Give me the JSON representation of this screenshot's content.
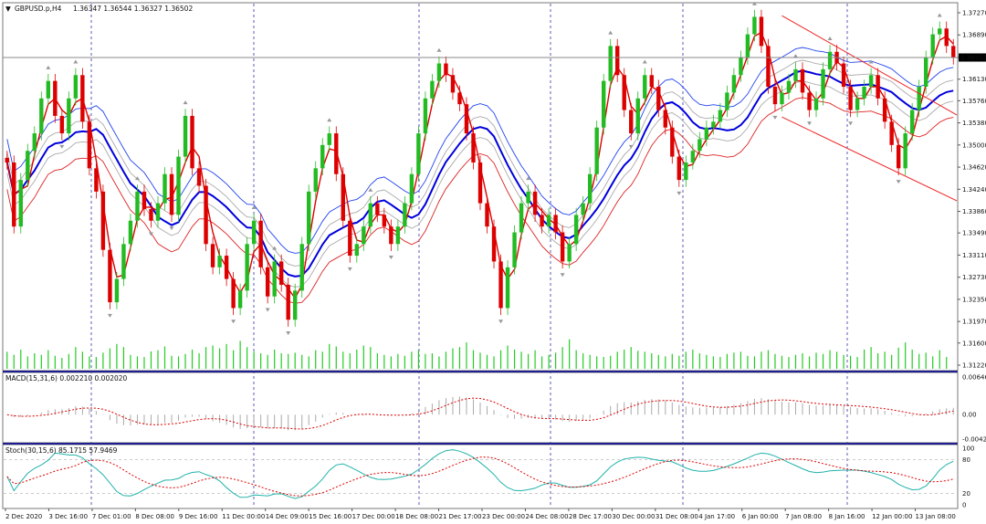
{
  "header": {
    "symbol_label": "GBPUSD.p,H4",
    "ohlc_label": "1.36347 1.36544 1.36327 1.36502"
  },
  "price_panel": {
    "ticks": [
      "1.37270",
      "1.36890",
      "1.36502",
      "1.36130",
      "1.35760",
      "1.35380",
      "1.35000",
      "1.34620",
      "1.34240",
      "1.33860",
      "1.33490",
      "1.33110",
      "1.32730",
      "1.32350",
      "1.31970",
      "1.31600",
      "1.31220"
    ],
    "ylim": [
      1.3122,
      1.3727
    ],
    "current_price": 1.36502,
    "current_price_label": "1.36502"
  },
  "macd_panel": {
    "label": "MACD(15,31,6) 0.002210 0.002020",
    "ticks": [
      "0.006467",
      "0.00",
      "-0.00425"
    ],
    "ylim": [
      -0.00425,
      0.006467
    ]
  },
  "stoch_panel": {
    "label": "Stoch(30,15,6) 85.1715 57.9469",
    "ticks": [
      "100",
      "80",
      "20",
      "0"
    ],
    "ylim": [
      0,
      100
    ]
  },
  "time_axis": {
    "labels": [
      "2 Dec 2020",
      "3 Dec 16:00",
      "7 Dec 01:00",
      "8 Dec 08:00",
      "9 Dec 16:00",
      "11 Dec 00:00",
      "14 Dec 09:00",
      "15 Dec 16:00",
      "17 Dec 00:00",
      "18 Dec 08:00",
      "21 Dec 17:00",
      "23 Dec 00:00",
      "24 Dec 08:00",
      "28 Dec 17:00",
      "30 Dec 00:00",
      "31 Dec 08:00",
      "4 Jan 17:00",
      "6 Jan 00:00",
      "7 Jan 08:00",
      "8 Jan 16:00",
      "12 Jan 00:00",
      "13 Jan 08:00"
    ]
  },
  "colors": {
    "bull": "#22bb22",
    "bear": "#dd0000",
    "ma_fast": "#dd0000",
    "ma_mid": "#0000dd",
    "band_upper": "#2244ee",
    "band_lower": "#dd2222",
    "band_inner": "#aaaaaa",
    "channel": "#ee2222",
    "volume": "#22cc22",
    "macd_hist": "#aaaaaa",
    "macd_signal": "#dd0000",
    "stoch_main": "#20b2aa",
    "stoch_signal": "#dd0000",
    "separator": "#0000aa"
  },
  "chart_data": {
    "type": "candlestick",
    "title": "GBPUSD.p,H4",
    "last_bar": {
      "open": 1.36347,
      "high": 1.36544,
      "low": 1.36327,
      "close": 1.36502
    },
    "closes": [
      1.347,
      1.336,
      1.344,
      1.349,
      1.352,
      1.358,
      1.361,
      1.355,
      1.352,
      1.358,
      1.362,
      1.354,
      1.346,
      1.342,
      1.332,
      1.323,
      1.327,
      1.333,
      1.337,
      1.342,
      1.339,
      1.337,
      1.34,
      1.345,
      1.338,
      1.348,
      1.355,
      1.346,
      1.343,
      1.333,
      1.329,
      1.331,
      1.327,
      1.322,
      1.325,
      1.333,
      1.337,
      1.329,
      1.324,
      1.33,
      1.326,
      1.32,
      1.325,
      1.333,
      1.342,
      1.346,
      1.35,
      1.352,
      1.345,
      1.337,
      1.331,
      1.333,
      1.336,
      1.34,
      1.338,
      1.336,
      1.333,
      1.336,
      1.34,
      1.345,
      1.352,
      1.358,
      1.361,
      1.364,
      1.362,
      1.359,
      1.357,
      1.352,
      1.347,
      1.34,
      1.336,
      1.33,
      1.322,
      1.329,
      1.335,
      1.34,
      1.342,
      1.338,
      1.336,
      1.338,
      1.335,
      1.33,
      1.333,
      1.338,
      1.34,
      1.345,
      1.353,
      1.361,
      1.367,
      1.362,
      1.356,
      1.352,
      1.358,
      1.362,
      1.36,
      1.356,
      1.353,
      1.348,
      1.344,
      1.347,
      1.349,
      1.351,
      1.353,
      1.354,
      1.356,
      1.359,
      1.362,
      1.365,
      1.369,
      1.372,
      1.367,
      1.36,
      1.357,
      1.359,
      1.361,
      1.363,
      1.359,
      1.356,
      1.358,
      1.363,
      1.366,
      1.364,
      1.36,
      1.356,
      1.358,
      1.36,
      1.362,
      1.358,
      1.354,
      1.35,
      1.346,
      1.352,
      1.356,
      1.36,
      1.365,
      1.369,
      1.37,
      1.367,
      1.365
    ],
    "volumes": [
      0.55,
      0.45,
      0.62,
      0.4,
      0.5,
      0.45,
      0.6,
      0.42,
      0.35,
      0.48,
      0.7,
      0.55,
      0.4,
      0.38,
      0.52,
      0.66,
      0.8,
      0.7,
      0.45,
      0.4,
      0.38,
      0.56,
      0.6,
      0.72,
      0.42,
      0.4,
      0.48,
      0.62,
      0.5,
      0.7,
      0.75,
      0.66,
      0.8,
      0.6,
      0.9,
      0.7,
      0.55,
      0.5,
      0.45,
      0.62,
      0.5,
      0.48,
      0.52,
      0.45,
      0.4,
      0.6,
      0.55,
      0.8,
      0.72,
      0.55,
      0.5,
      0.62,
      0.75,
      0.7,
      0.5,
      0.45,
      0.4,
      0.48,
      0.42,
      0.55,
      0.6,
      0.48,
      0.5,
      0.4,
      0.55,
      0.66,
      0.7,
      0.85,
      0.6,
      0.52,
      0.45,
      0.4,
      0.6,
      0.75,
      0.62,
      0.55,
      0.48,
      0.6,
      0.4,
      0.45,
      0.52,
      0.7,
      0.95,
      0.6,
      0.5,
      0.45,
      0.4,
      0.38,
      0.42,
      0.55,
      0.62,
      0.7,
      0.58,
      0.55,
      0.5,
      0.45,
      0.4,
      0.48,
      0.42,
      0.55,
      0.62,
      0.5,
      0.45,
      0.4,
      0.38,
      0.48,
      0.52,
      0.55,
      0.42,
      0.4,
      0.55,
      0.6,
      0.48,
      0.42,
      0.38,
      0.45,
      0.5,
      0.4,
      0.52,
      0.48,
      0.6,
      0.55,
      0.45,
      0.42,
      0.38,
      0.62,
      0.7,
      0.5,
      0.55,
      0.45,
      0.68,
      0.85,
      0.62,
      0.48,
      0.52,
      0.4,
      0.6,
      0.38
    ],
    "channel_lines": [
      {
        "points": [
          [
            113,
            1.3722
          ],
          [
            135,
            1.3575
          ]
        ]
      },
      {
        "points": [
          [
            113,
            1.3548
          ],
          [
            135,
            1.3424
          ]
        ]
      }
    ]
  }
}
